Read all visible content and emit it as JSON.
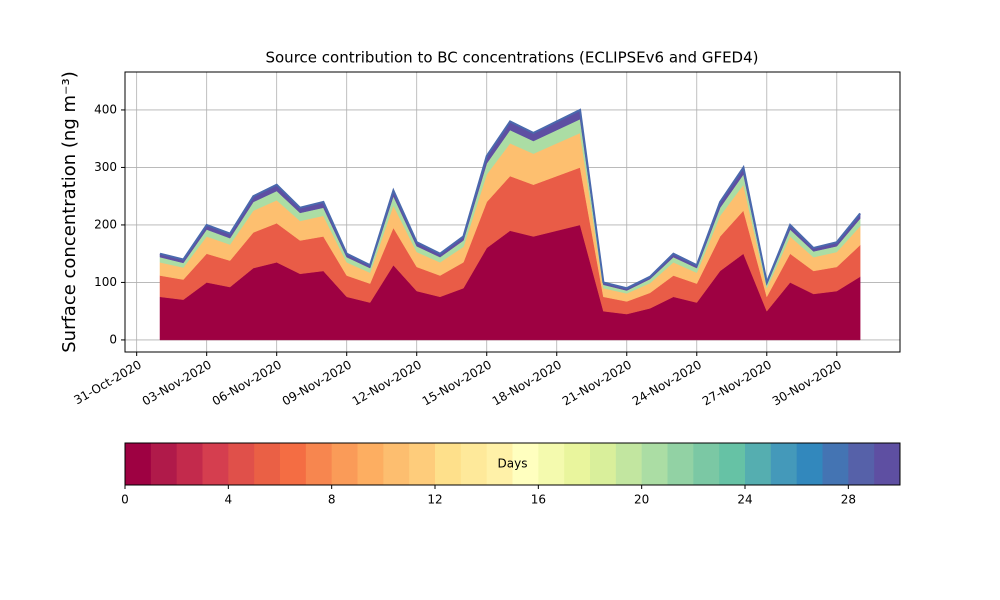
{
  "chart_data": {
    "type": "stacked_area",
    "title": "Source contribution to BC concentrations (ECLIPSEv6 and GFED4)",
    "ylabel": "Surface concentration (ng m⁻³)",
    "x": [
      "2020-11-01",
      "2020-11-02",
      "2020-11-03",
      "2020-11-04",
      "2020-11-05",
      "2020-11-06",
      "2020-11-07",
      "2020-11-08",
      "2020-11-09",
      "2020-11-10",
      "2020-11-11",
      "2020-11-12",
      "2020-11-13",
      "2020-11-14",
      "2020-11-15",
      "2020-11-16",
      "2020-11-17",
      "2020-11-18",
      "2020-11-19",
      "2020-11-20",
      "2020-11-21",
      "2020-11-22",
      "2020-11-23",
      "2020-11-24",
      "2020-11-25",
      "2020-11-26",
      "2020-11-27",
      "2020-11-28",
      "2020-11-29",
      "2020-11-30",
      "2020-12-01"
    ],
    "series": [
      {
        "color": "#9e0142",
        "values": [
          75,
          70,
          100,
          92,
          125,
          135,
          115,
          120,
          75,
          65,
          130,
          85,
          75,
          90,
          160,
          190,
          180,
          190,
          200,
          50,
          45,
          55,
          75,
          65,
          120,
          150,
          50,
          100,
          80,
          85,
          110
        ]
      },
      {
        "color": "#e95c47",
        "values": [
          37,
          35,
          50,
          46,
          62,
          68,
          58,
          60,
          37,
          33,
          65,
          42,
          37,
          45,
          80,
          95,
          90,
          95,
          100,
          25,
          22,
          27,
          37,
          33,
          60,
          75,
          25,
          50,
          40,
          42,
          55
        ]
      },
      {
        "color": "#fdbf6f",
        "values": [
          23,
          21,
          30,
          28,
          38,
          40,
          34,
          36,
          23,
          19,
          39,
          26,
          23,
          27,
          48,
          57,
          54,
          57,
          60,
          15,
          14,
          17,
          23,
          19,
          36,
          45,
          15,
          30,
          24,
          26,
          33
        ]
      },
      {
        "color": "#abdda4",
        "values": [
          9,
          8,
          12,
          11,
          15,
          16,
          14,
          14,
          9,
          8,
          16,
          10,
          9,
          11,
          19,
          23,
          22,
          23,
          24,
          6,
          5,
          7,
          9,
          8,
          14,
          18,
          6,
          12,
          10,
          10,
          13
        ]
      },
      {
        "color": "#5e4fa2",
        "values": [
          6,
          6,
          8,
          8,
          10,
          11,
          9,
          10,
          6,
          5,
          10,
          7,
          6,
          7,
          13,
          15,
          14,
          15,
          16,
          4,
          4,
          4,
          6,
          5,
          10,
          12,
          4,
          8,
          6,
          7,
          9
        ]
      }
    ],
    "xlim": [
      "2020-10-30T12:00",
      "2020-12-02T17:00"
    ],
    "xticks": [
      {
        "value": "2020-10-31",
        "label": "31-Oct-2020"
      },
      {
        "value": "2020-11-03",
        "label": "03-Nov-2020"
      },
      {
        "value": "2020-11-06",
        "label": "06-Nov-2020"
      },
      {
        "value": "2020-11-09",
        "label": "09-Nov-2020"
      },
      {
        "value": "2020-11-12",
        "label": "12-Nov-2020"
      },
      {
        "value": "2020-11-15",
        "label": "15-Nov-2020"
      },
      {
        "value": "2020-11-18",
        "label": "18-Nov-2020"
      },
      {
        "value": "2020-11-21",
        "label": "21-Nov-2020"
      },
      {
        "value": "2020-11-24",
        "label": "24-Nov-2020"
      },
      {
        "value": "2020-11-27",
        "label": "27-Nov-2020"
      },
      {
        "value": "2020-11-30",
        "label": "30-Nov-2020"
      }
    ],
    "ylim": [
      -21,
      466
    ],
    "yticks": [
      0,
      100,
      200,
      300,
      400
    ],
    "grid": true,
    "line_color": "#4a69ad",
    "colorbar": {
      "label": "Days",
      "lim": [
        0,
        30
      ],
      "ticks": [
        0,
        4,
        8,
        12,
        16,
        20,
        24,
        28
      ],
      "colors": [
        "#9e0142",
        "#b01a4a",
        "#c32a4c",
        "#d53e4f",
        "#e0504a",
        "#ea6045",
        "#f46d43",
        "#f7864f",
        "#fa9b58",
        "#fdae61",
        "#fdbe6f",
        "#fecc7b",
        "#fee08b",
        "#fee99a",
        "#fff1a8",
        "#ffffbf",
        "#f4faae",
        "#e9f59d",
        "#d9ef9b",
        "#c2e6a0",
        "#abdda4",
        "#92d2a4",
        "#7bc8a4",
        "#66c2a5",
        "#55aeb0",
        "#4499ba",
        "#3288bd",
        "#4474b3",
        "#5661a9",
        "#5e4fa2"
      ]
    }
  }
}
